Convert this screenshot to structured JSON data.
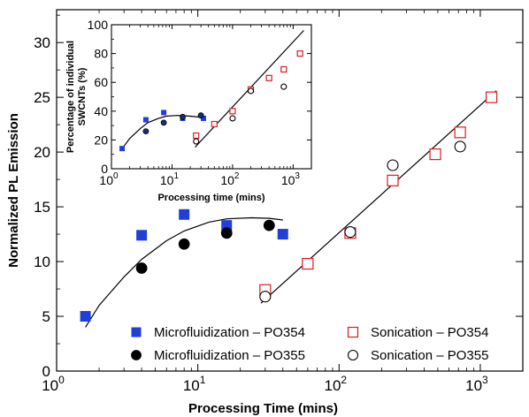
{
  "chart_data": [
    {
      "id": "main",
      "type": "scatter",
      "xscale": "log",
      "xlabel": "Processing Time (mins)",
      "ylabel": "Normalized PL Emission",
      "xlim": [
        1,
        2000
      ],
      "ylim": [
        0,
        33
      ],
      "xticks": [
        {
          "value": 1,
          "base": "10",
          "exp": "0"
        },
        {
          "value": 10,
          "base": "10",
          "exp": "1"
        },
        {
          "value": 100,
          "base": "10",
          "exp": "2"
        },
        {
          "value": 1000,
          "base": "10",
          "exp": "3"
        }
      ],
      "yticks": [
        0,
        5,
        10,
        15,
        20,
        25,
        30
      ],
      "grid": false,
      "legend_position": "bottom-right",
      "series": [
        {
          "name": "Microfluidization – PO354",
          "marker": "filled-square",
          "color": "#1f3fd6",
          "x": [
            1.6,
            4,
            8,
            16,
            40
          ],
          "y": [
            5.0,
            12.4,
            14.3,
            13.3,
            12.5
          ]
        },
        {
          "name": "Microfluidization – PO355",
          "marker": "filled-circle",
          "color": "#000000",
          "x": [
            4,
            8,
            16,
            32
          ],
          "y": [
            9.4,
            11.6,
            12.6,
            13.3
          ]
        },
        {
          "name": "Sonication – PO354",
          "marker": "open-square",
          "color": "#d62020",
          "x": [
            30,
            60,
            120,
            240,
            480,
            720,
            1200
          ],
          "y": [
            7.4,
            9.8,
            12.6,
            17.4,
            19.8,
            21.8,
            25.0
          ]
        },
        {
          "name": "Sonication – PO355",
          "marker": "open-circle",
          "color": "#000000",
          "x": [
            30,
            120,
            240,
            720
          ],
          "y": [
            6.8,
            12.7,
            18.8,
            20.5
          ]
        }
      ],
      "fits": [
        {
          "kind": "curve",
          "x": [
            1.6,
            2,
            3,
            4,
            6,
            8,
            12,
            16,
            24,
            32,
            40
          ],
          "y": [
            4.0,
            6.0,
            8.6,
            10.2,
            11.9,
            12.8,
            13.6,
            13.9,
            14.0,
            13.95,
            13.8
          ]
        },
        {
          "kind": "line",
          "x": [
            28,
            1300
          ],
          "y": [
            6.2,
            25.6
          ]
        }
      ]
    },
    {
      "id": "inset",
      "type": "scatter",
      "xscale": "log",
      "xlabel": "Processing time (mins)",
      "ylabel_lines": [
        "Percentage of individual",
        "SWCNTs (%)"
      ],
      "xlim": [
        1,
        2000
      ],
      "ylim": [
        0,
        100
      ],
      "xticks": [
        {
          "value": 1,
          "base": "10",
          "exp": "0"
        },
        {
          "value": 10,
          "base": "10",
          "exp": "1"
        },
        {
          "value": 100,
          "base": "10",
          "exp": "2"
        },
        {
          "value": 1000,
          "base": "10",
          "exp": "3"
        }
      ],
      "yticks": [
        0,
        20,
        40,
        60,
        80,
        100
      ],
      "grid": false,
      "series": [
        {
          "marker": "filled-square",
          "color": "#1f3fd6",
          "x": [
            1.5,
            3.7,
            7.3,
            15,
            33
          ],
          "y": [
            14,
            34,
            39,
            35,
            35
          ]
        },
        {
          "marker": "filled-circle",
          "color": "#1a2a80",
          "x": [
            3.7,
            7.3,
            15,
            30
          ],
          "y": [
            26,
            32,
            36,
            37
          ]
        },
        {
          "marker": "open-square",
          "color": "#d62020",
          "x": [
            25,
            50,
            100,
            200,
            400,
            700,
            1300
          ],
          "y": [
            23,
            31,
            40,
            55,
            63,
            69,
            80
          ]
        },
        {
          "marker": "open-circle",
          "color": "#000000",
          "x": [
            25,
            100,
            200,
            700
          ],
          "y": [
            19,
            35,
            54,
            57
          ]
        }
      ],
      "fits": [
        {
          "kind": "curve",
          "x": [
            1.5,
            2,
            3,
            4,
            6,
            8,
            12,
            16,
            24,
            32
          ],
          "y": [
            14,
            21,
            28,
            32,
            35,
            36.5,
            37,
            36.8,
            36.2,
            35.5
          ]
        },
        {
          "kind": "line",
          "x": [
            24,
            1500
          ],
          "y": [
            15,
            96
          ]
        }
      ]
    }
  ]
}
